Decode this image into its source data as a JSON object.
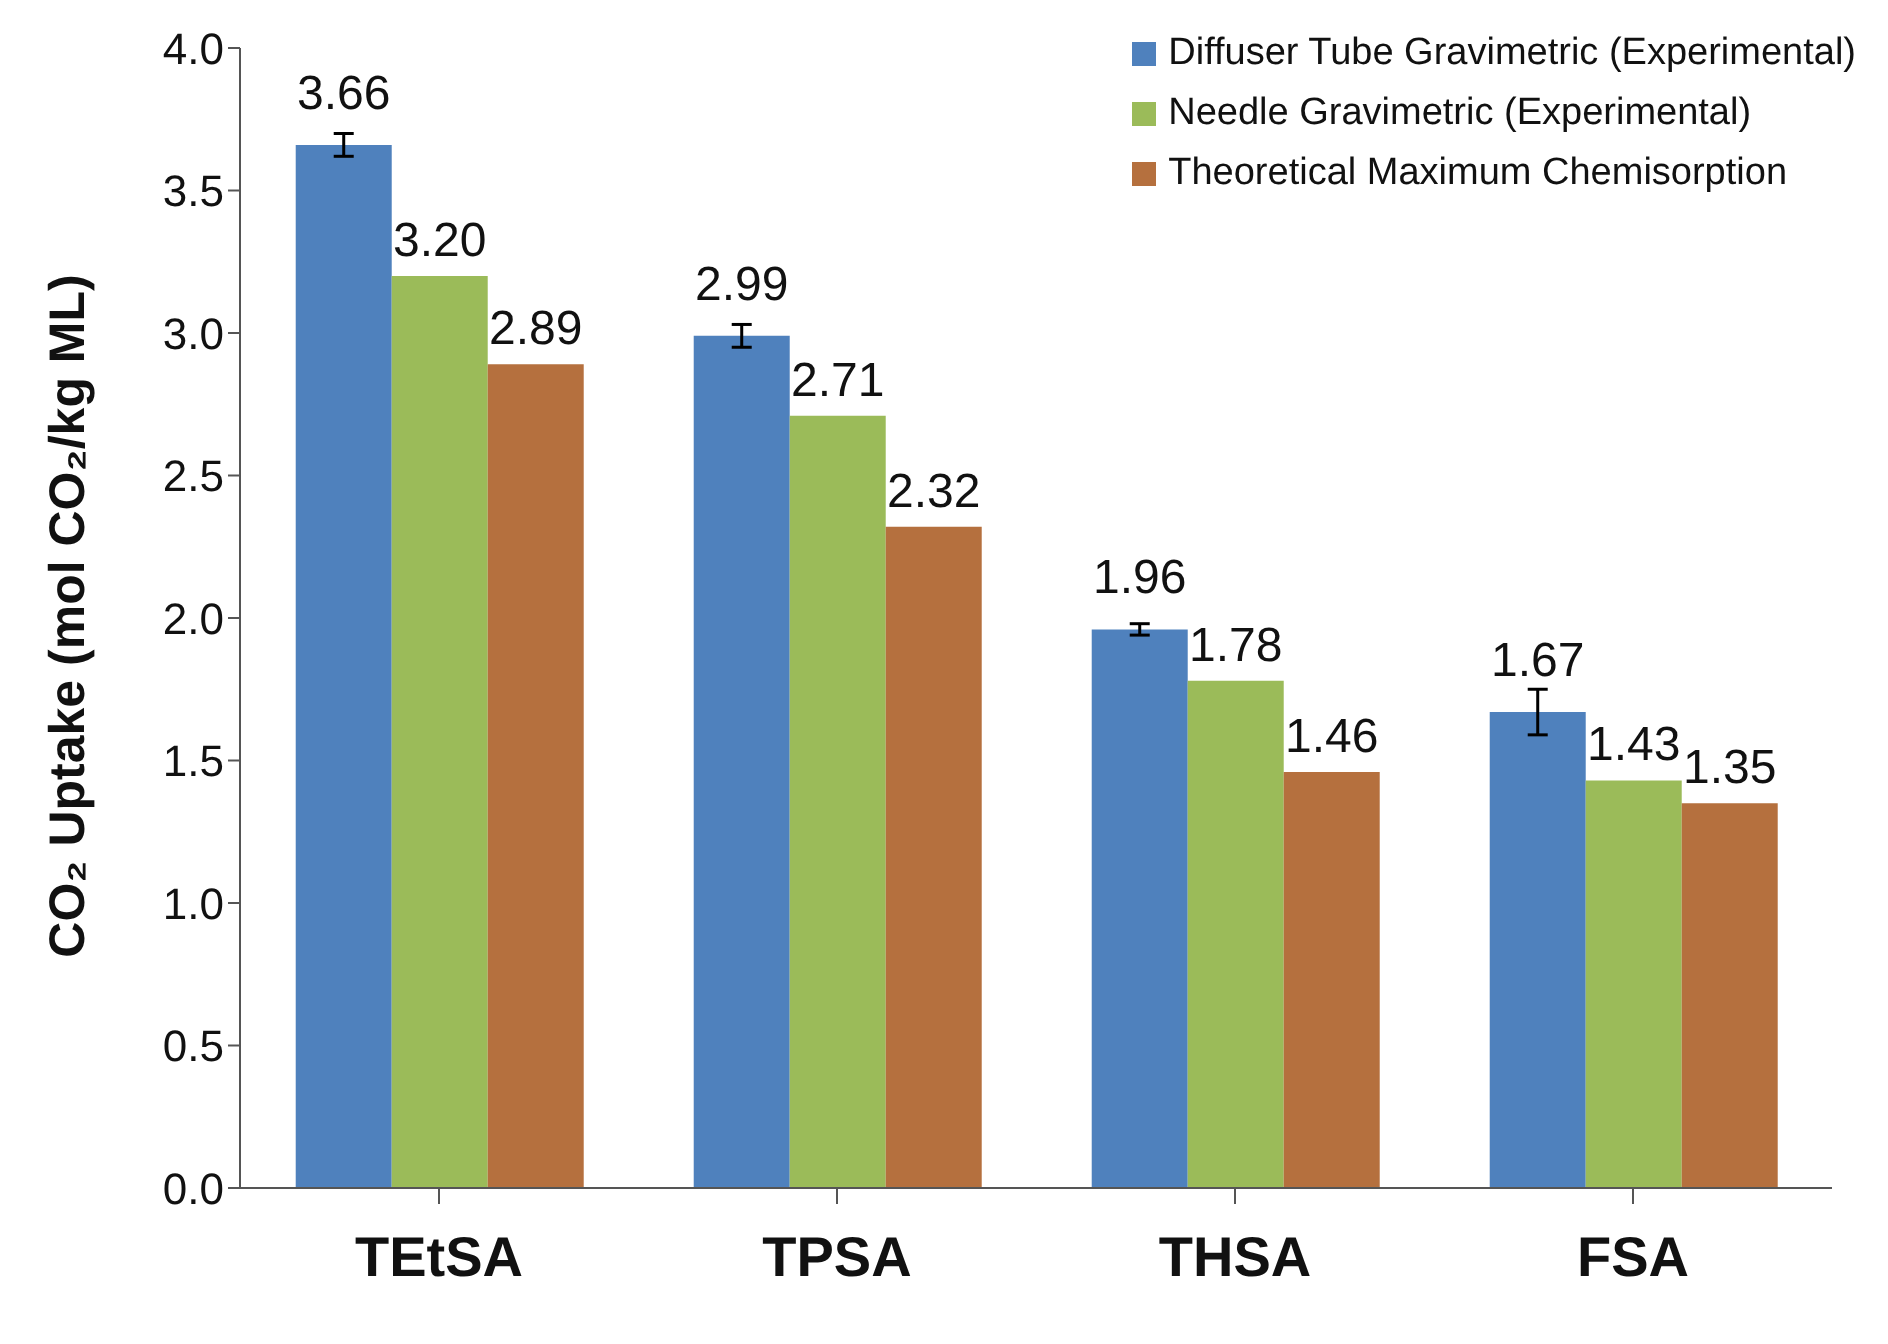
{
  "chart_data": {
    "type": "bar",
    "ylabel": "CO₂ Uptake (mol CO₂/kg ML)",
    "categories": [
      "TEtSA",
      "TPSA",
      "THSA",
      "FSA"
    ],
    "series": [
      {
        "name": "Diffuser Tube Gravimetric (Experimental)",
        "color": "#4f81bd",
        "values": [
          3.66,
          2.99,
          1.96,
          1.67
        ],
        "errors": [
          0.04,
          0.04,
          0.02,
          0.08
        ],
        "value_labels": [
          "3.66",
          "2.99",
          "1.96",
          "1.67"
        ]
      },
      {
        "name": "Needle Gravimetric (Experimental)",
        "color": "#9bbb59",
        "values": [
          3.2,
          2.71,
          1.78,
          1.43
        ],
        "value_labels": [
          "3.20",
          "2.71",
          "1.78",
          "1.43"
        ]
      },
      {
        "name": "Theoretical Maximum Chemisorption",
        "color": "#b5703e",
        "values": [
          2.89,
          2.32,
          1.46,
          1.35
        ],
        "value_labels": [
          "2.89",
          "2.32",
          "1.46",
          "1.35"
        ]
      }
    ],
    "ylim": [
      0,
      4
    ],
    "yticks": [
      {
        "value": 0,
        "label": "0.0"
      },
      {
        "value": 0.5,
        "label": "0.5"
      },
      {
        "value": 1,
        "label": "1.0"
      },
      {
        "value": 1.5,
        "label": "1.5"
      },
      {
        "value": 2,
        "label": "2.0"
      },
      {
        "value": 2.5,
        "label": "2.5"
      },
      {
        "value": 3,
        "label": "3.0"
      },
      {
        "value": 3.5,
        "label": "3.5"
      },
      {
        "value": 4,
        "label": "4.0"
      }
    ],
    "grid": false,
    "legend": "top right"
  }
}
